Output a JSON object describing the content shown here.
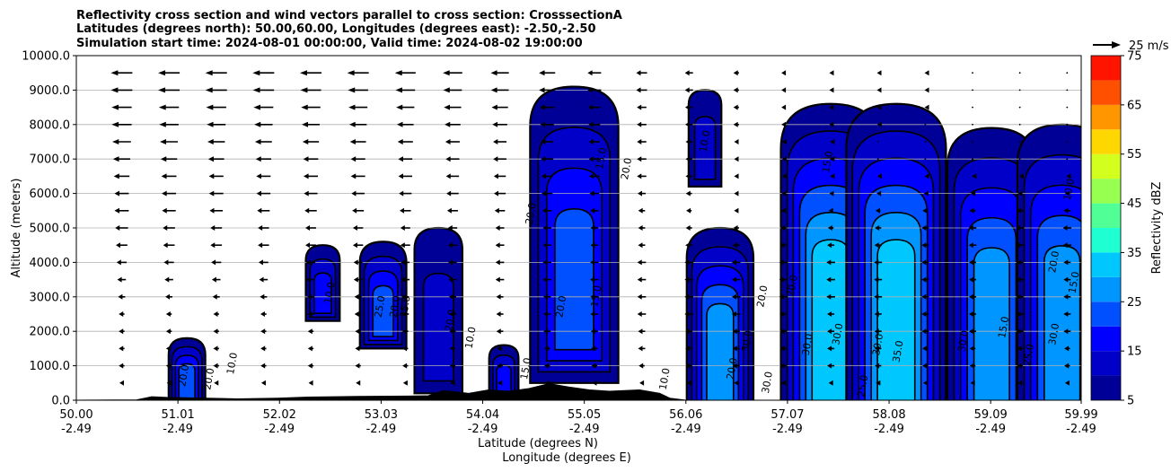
{
  "title_lines": [
    "Reflectivity cross section and wind vectors parallel to cross section: CrosssectionA",
    "Latitudes (degrees north): 50.00,60.00, Longitudes (degrees east): -2.50,-2.50",
    "Simulation start time: 2024-08-01 00:00:00, Valid time: 2024-08-02 19:00:00"
  ],
  "chart_data": {
    "type": "contourf",
    "title": "Reflectivity cross section and wind vectors parallel to cross section: CrosssectionA",
    "xlabel": "Latitude (degrees N)",
    "xlabel2": "Longitude (degrees E)",
    "ylabel": "Altitude (meters)",
    "ylim": [
      0,
      10000
    ],
    "xlim": [
      50.0,
      59.99
    ],
    "grid": "horizontal",
    "x_ticks": [
      {
        "lat": "50.00",
        "lon": "-2.49"
      },
      {
        "lat": "51.01",
        "lon": "-2.49"
      },
      {
        "lat": "52.02",
        "lon": "-2.49"
      },
      {
        "lat": "53.03",
        "lon": "-2.49"
      },
      {
        "lat": "54.04",
        "lon": "-2.49"
      },
      {
        "lat": "55.05",
        "lon": "-2.49"
      },
      {
        "lat": "56.06",
        "lon": "-2.49"
      },
      {
        "lat": "57.07",
        "lon": "-2.49"
      },
      {
        "lat": "58.08",
        "lon": "-2.49"
      },
      {
        "lat": "59.09",
        "lon": "-2.49"
      },
      {
        "lat": "59.99",
        "lon": "-2.49"
      }
    ],
    "y_ticks": [
      "0.0",
      "1000.0",
      "2000.0",
      "3000.0",
      "4000.0",
      "5000.0",
      "6000.0",
      "7000.0",
      "8000.0",
      "9000.0",
      "10000.0"
    ],
    "colorbar": {
      "label": "Reflectivity dBZ",
      "levels": [
        5,
        10,
        15,
        20,
        25,
        30,
        35,
        40,
        45,
        50,
        55,
        60,
        65,
        70,
        75
      ],
      "tick_labels": [
        "5",
        "15",
        "25",
        "35",
        "45",
        "55",
        "65",
        "75"
      ],
      "colors": [
        "#000096",
        "#0000C8",
        "#0000FF",
        "#0050FF",
        "#0096FF",
        "#00C8FF",
        "#1EFFD2",
        "#50FF96",
        "#96FF50",
        "#D2FF1E",
        "#FFD700",
        "#FF9600",
        "#FF5000",
        "#FF1400",
        "#AA0000"
      ]
    },
    "quiver_key": {
      "label": "25 m/s",
      "value": 25
    },
    "wind_vectors": [
      {
        "z": 9500,
        "speed_by_lat": [
          [
            50.4,
            15
          ],
          [
            51.5,
            15
          ],
          [
            53.0,
            15
          ],
          [
            54.5,
            12
          ],
          [
            55.5,
            8
          ],
          [
            56.5,
            4
          ],
          [
            57.5,
            2
          ],
          [
            58.5,
            1
          ],
          [
            59.9,
            0
          ]
        ]
      },
      {
        "z": 9000,
        "speed_by_lat": [
          [
            50.4,
            15
          ],
          [
            51.5,
            15
          ],
          [
            53.0,
            14
          ],
          [
            54.5,
            12
          ],
          [
            55.5,
            8
          ],
          [
            56.5,
            4
          ],
          [
            57.5,
            2
          ],
          [
            58.5,
            1
          ],
          [
            59.9,
            0
          ]
        ]
      },
      {
        "z": 8500,
        "speed_by_lat": [
          [
            50.4,
            14
          ],
          [
            51.5,
            14
          ],
          [
            53.0,
            13
          ],
          [
            54.5,
            11
          ],
          [
            55.5,
            7
          ],
          [
            56.5,
            4
          ],
          [
            57.5,
            2
          ],
          [
            58.5,
            1
          ],
          [
            59.9,
            0
          ]
        ]
      },
      {
        "z": 8000,
        "speed_by_lat": [
          [
            50.4,
            14
          ],
          [
            51.5,
            13
          ],
          [
            53.0,
            12
          ],
          [
            54.5,
            10
          ],
          [
            55.5,
            7
          ],
          [
            56.5,
            4
          ],
          [
            57.5,
            2
          ],
          [
            58.5,
            0
          ],
          [
            59.9,
            0
          ]
        ]
      },
      {
        "z": 7500,
        "speed_by_lat": [
          [
            50.4,
            13
          ],
          [
            51.5,
            12
          ],
          [
            53.0,
            11
          ],
          [
            54.5,
            9
          ],
          [
            55.5,
            7
          ],
          [
            56.5,
            3
          ],
          [
            57.5,
            1
          ],
          [
            58.5,
            0
          ],
          [
            59.9,
            0
          ]
        ]
      },
      {
        "z": 7000,
        "speed_by_lat": [
          [
            50.4,
            12
          ],
          [
            51.5,
            11
          ],
          [
            53.0,
            10
          ],
          [
            54.5,
            9
          ],
          [
            55.5,
            7
          ],
          [
            56.5,
            3
          ],
          [
            57.5,
            1
          ],
          [
            58.5,
            0
          ],
          [
            59.9,
            0
          ]
        ]
      },
      {
        "z": 6500,
        "speed_by_lat": [
          [
            50.4,
            11
          ],
          [
            51.5,
            10
          ],
          [
            53.0,
            10
          ],
          [
            54.5,
            8
          ],
          [
            55.5,
            7
          ],
          [
            56.5,
            3
          ],
          [
            57.5,
            1
          ],
          [
            58.5,
            1
          ],
          [
            59.9,
            1
          ]
        ]
      },
      {
        "z": 6000,
        "speed_by_lat": [
          [
            50.4,
            10
          ],
          [
            51.5,
            10
          ],
          [
            53.0,
            9
          ],
          [
            54.5,
            8
          ],
          [
            55.5,
            6
          ],
          [
            56.5,
            3
          ],
          [
            57.5,
            2
          ],
          [
            58.5,
            2
          ],
          [
            59.9,
            3
          ]
        ]
      },
      {
        "z": 5500,
        "speed_by_lat": [
          [
            50.4,
            10
          ],
          [
            51.5,
            9
          ],
          [
            53.0,
            8
          ],
          [
            54.5,
            7
          ],
          [
            55.5,
            5
          ],
          [
            56.5,
            3
          ],
          [
            57.5,
            3
          ],
          [
            58.5,
            4
          ],
          [
            59.9,
            5
          ]
        ]
      },
      {
        "z": 5000,
        "speed_by_lat": [
          [
            50.4,
            9
          ],
          [
            51.5,
            8
          ],
          [
            53.0,
            7
          ],
          [
            54.5,
            6
          ],
          [
            55.5,
            5
          ],
          [
            56.5,
            4
          ],
          [
            57.5,
            4
          ],
          [
            58.5,
            5
          ],
          [
            59.9,
            6
          ]
        ]
      },
      {
        "z": 4500,
        "speed_by_lat": [
          [
            50.4,
            8
          ],
          [
            51.5,
            8
          ],
          [
            53.0,
            7
          ],
          [
            54.5,
            6
          ],
          [
            55.5,
            5
          ],
          [
            56.5,
            5
          ],
          [
            57.5,
            5
          ],
          [
            58.5,
            5
          ],
          [
            59.9,
            6
          ]
        ]
      },
      {
        "z": 4000,
        "speed_by_lat": [
          [
            50.4,
            7
          ],
          [
            51.5,
            7
          ],
          [
            53.0,
            6
          ],
          [
            54.5,
            6
          ],
          [
            55.5,
            6
          ],
          [
            56.5,
            6
          ],
          [
            57.5,
            6
          ],
          [
            58.5,
            5
          ],
          [
            59.9,
            5
          ]
        ]
      },
      {
        "z": 3500,
        "speed_by_lat": [
          [
            50.4,
            6
          ],
          [
            51.5,
            6
          ],
          [
            53.0,
            6
          ],
          [
            54.5,
            6
          ],
          [
            55.5,
            6
          ],
          [
            56.5,
            6
          ],
          [
            57.5,
            6
          ],
          [
            58.5,
            5
          ],
          [
            59.9,
            5
          ]
        ]
      },
      {
        "z": 3000,
        "speed_by_lat": [
          [
            50.4,
            5
          ],
          [
            51.5,
            5
          ],
          [
            53.0,
            5
          ],
          [
            54.5,
            5
          ],
          [
            55.5,
            6
          ],
          [
            56.5,
            6
          ],
          [
            57.5,
            6
          ],
          [
            58.5,
            5
          ],
          [
            59.9,
            5
          ]
        ]
      },
      {
        "z": 2500,
        "speed_by_lat": [
          [
            50.4,
            4
          ],
          [
            51.5,
            4
          ],
          [
            53.0,
            5
          ],
          [
            54.5,
            5
          ],
          [
            55.5,
            6
          ],
          [
            56.5,
            6
          ],
          [
            57.5,
            5
          ],
          [
            58.5,
            5
          ],
          [
            59.9,
            5
          ]
        ]
      },
      {
        "z": 2000,
        "speed_by_lat": [
          [
            50.4,
            4
          ],
          [
            51.5,
            4
          ],
          [
            53.0,
            4
          ],
          [
            54.5,
            5
          ],
          [
            55.5,
            5
          ],
          [
            56.5,
            5
          ],
          [
            57.5,
            5
          ],
          [
            58.5,
            5
          ],
          [
            59.9,
            5
          ]
        ]
      },
      {
        "z": 1500,
        "speed_by_lat": [
          [
            50.4,
            4
          ],
          [
            51.5,
            4
          ],
          [
            53.0,
            4
          ],
          [
            54.5,
            4
          ],
          [
            55.5,
            5
          ],
          [
            56.5,
            5
          ],
          [
            57.5,
            5
          ],
          [
            58.5,
            4
          ],
          [
            59.9,
            4
          ]
        ]
      },
      {
        "z": 1000,
        "speed_by_lat": [
          [
            50.4,
            4
          ],
          [
            51.5,
            4
          ],
          [
            53.0,
            4
          ],
          [
            54.5,
            4
          ],
          [
            55.5,
            4
          ],
          [
            56.5,
            5
          ],
          [
            57.5,
            5
          ],
          [
            58.5,
            4
          ],
          [
            59.9,
            4
          ]
        ]
      },
      {
        "z": 500,
        "speed_by_lat": [
          [
            50.4,
            3
          ],
          [
            51.5,
            3
          ],
          [
            53.0,
            3
          ],
          [
            54.5,
            3
          ],
          [
            55.5,
            3
          ],
          [
            56.5,
            3
          ],
          [
            57.5,
            3
          ],
          [
            58.5,
            3
          ],
          [
            59.9,
            3
          ]
        ]
      }
    ],
    "storm_cells": [
      {
        "lat": 51.1,
        "bottom": 0,
        "top": 1800,
        "peak_dbz": 25
      },
      {
        "lat": 52.45,
        "bottom": 2300,
        "top": 4500,
        "peak_dbz": 20
      },
      {
        "lat": 53.05,
        "bottom": 1500,
        "top": 4600,
        "peak_dbz": 25
      },
      {
        "lat": 53.6,
        "bottom": 200,
        "top": 5000,
        "peak_dbz": 15
      },
      {
        "lat": 54.25,
        "bottom": 0,
        "top": 1600,
        "peak_dbz": 20
      },
      {
        "lat": 54.95,
        "bottom": 500,
        "top": 9100,
        "peak_dbz": 25
      },
      {
        "lat": 56.25,
        "bottom": 6200,
        "top": 9000,
        "peak_dbz": 15
      },
      {
        "lat": 56.4,
        "bottom": 0,
        "top": 5000,
        "peak_dbz": 30
      },
      {
        "lat": 57.5,
        "bottom": 0,
        "top": 8600,
        "peak_dbz": 35
      },
      {
        "lat": 58.15,
        "bottom": 0,
        "top": 8600,
        "peak_dbz": 35
      },
      {
        "lat": 59.1,
        "bottom": 0,
        "top": 7900,
        "peak_dbz": 30
      },
      {
        "lat": 59.8,
        "bottom": 0,
        "top": 8000,
        "peak_dbz": 30
      }
    ],
    "contour_labels": [
      {
        "lat": 51.1,
        "z": 700,
        "text": "20.0"
      },
      {
        "lat": 51.35,
        "z": 600,
        "text": "20.0"
      },
      {
        "lat": 51.58,
        "z": 1050,
        "text": "10.0"
      },
      {
        "lat": 52.55,
        "z": 3100,
        "text": "10.0"
      },
      {
        "lat": 53.05,
        "z": 2700,
        "text": "25.0"
      },
      {
        "lat": 53.2,
        "z": 2700,
        "text": "20.0"
      },
      {
        "lat": 53.3,
        "z": 2700,
        "text": "15.0"
      },
      {
        "lat": 53.75,
        "z": 2300,
        "text": "20.0"
      },
      {
        "lat": 53.95,
        "z": 1800,
        "text": "10.0"
      },
      {
        "lat": 54.5,
        "z": 900,
        "text": "15.0"
      },
      {
        "lat": 55.2,
        "z": 3000,
        "text": "15.0"
      },
      {
        "lat": 54.85,
        "z": 2700,
        "text": "20.0"
      },
      {
        "lat": 55.25,
        "z": 7000,
        "text": "15.0"
      },
      {
        "lat": 55.5,
        "z": 6700,
        "text": "20.0"
      },
      {
        "lat": 54.55,
        "z": 5400,
        "text": "20.0"
      },
      {
        "lat": 55.88,
        "z": 600,
        "text": "10.0"
      },
      {
        "lat": 56.28,
        "z": 7500,
        "text": "10.0"
      },
      {
        "lat": 56.85,
        "z": 3000,
        "text": "20.0"
      },
      {
        "lat": 56.7,
        "z": 1700,
        "text": "30.0"
      },
      {
        "lat": 56.55,
        "z": 900,
        "text": "20.0"
      },
      {
        "lat": 56.9,
        "z": 500,
        "text": "30.0"
      },
      {
        "lat": 57.15,
        "z": 3300,
        "text": "20.0"
      },
      {
        "lat": 57.5,
        "z": 6900,
        "text": "15.0"
      },
      {
        "lat": 57.3,
        "z": 1600,
        "text": "30.0"
      },
      {
        "lat": 57.6,
        "z": 1900,
        "text": "30.0"
      },
      {
        "lat": 57.85,
        "z": 400,
        "text": "25.0"
      },
      {
        "lat": 58.0,
        "z": 1600,
        "text": "30.0"
      },
      {
        "lat": 58.2,
        "z": 1400,
        "text": "35.0"
      },
      {
        "lat": 58.85,
        "z": 1700,
        "text": "30.0"
      },
      {
        "lat": 59.25,
        "z": 2100,
        "text": "15.0"
      },
      {
        "lat": 59.5,
        "z": 1300,
        "text": "25.0"
      },
      {
        "lat": 59.75,
        "z": 1900,
        "text": "30.0"
      },
      {
        "lat": 59.75,
        "z": 4000,
        "text": "20.0"
      },
      {
        "lat": 59.9,
        "z": 6100,
        "text": "10.0"
      },
      {
        "lat": 59.95,
        "z": 3400,
        "text": "15.0"
      }
    ],
    "terrain": [
      [
        50.0,
        0
      ],
      [
        50.6,
        10
      ],
      [
        50.75,
        100
      ],
      [
        50.9,
        80
      ],
      [
        51.3,
        60
      ],
      [
        51.6,
        40
      ],
      [
        52.0,
        60
      ],
      [
        52.3,
        90
      ],
      [
        52.8,
        110
      ],
      [
        53.3,
        120
      ],
      [
        53.5,
        130
      ],
      [
        53.65,
        280
      ],
      [
        53.9,
        200
      ],
      [
        54.1,
        300
      ],
      [
        54.3,
        260
      ],
      [
        54.5,
        340
      ],
      [
        54.7,
        480
      ],
      [
        54.9,
        380
      ],
      [
        55.1,
        300
      ],
      [
        55.3,
        260
      ],
      [
        55.6,
        300
      ],
      [
        55.8,
        200
      ],
      [
        55.9,
        60
      ],
      [
        56.06,
        0
      ]
    ]
  }
}
